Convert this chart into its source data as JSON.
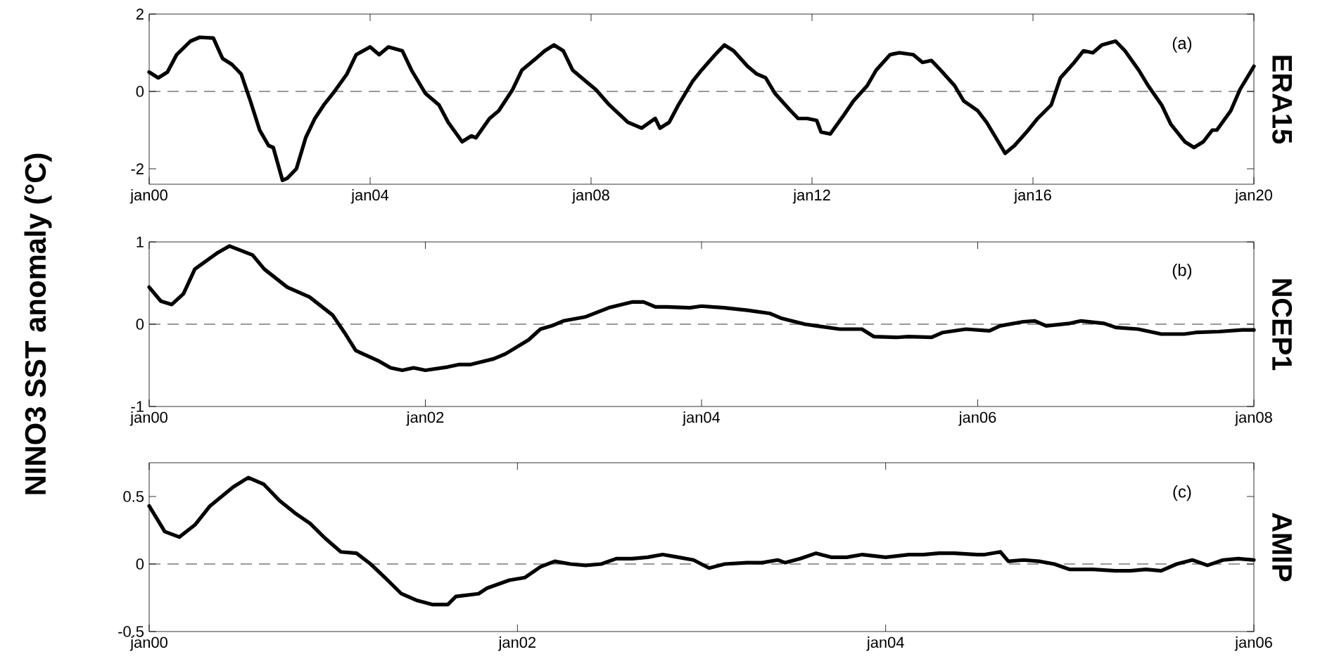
{
  "chart_data": [
    {
      "type": "line",
      "title": "ERA15",
      "annotations": [
        "(a)"
      ],
      "color": "#000000",
      "xlim": [
        "2000-01",
        "2020-01"
      ],
      "ylim": [
        -2.4,
        2
      ],
      "xticks": [
        {
          "value": "2000-01",
          "label": "jan00"
        },
        {
          "value": "2004-01",
          "label": "jan04"
        },
        {
          "value": "2008-01",
          "label": "jan08"
        },
        {
          "value": "2012-01",
          "label": "jan12"
        },
        {
          "value": "2016-01",
          "label": "jan16"
        },
        {
          "value": "2020-01",
          "label": "jan20"
        }
      ],
      "yticks": [
        -2,
        0,
        2
      ],
      "ref_lines": [
        {
          "axis": "y",
          "value": 0,
          "line_style": "dashed"
        }
      ],
      "x": [
        "2000-01",
        "2000-03",
        "2000-05",
        "2000-07",
        "2000-10",
        "2000-12",
        "2001-03",
        "2001-05",
        "2001-07",
        "2001-09",
        "2001-11",
        "2002-01",
        "2002-03",
        "2002-04",
        "2002-06",
        "2002-07",
        "2002-09",
        "2002-11",
        "2003-01",
        "2003-03",
        "2003-05",
        "2003-08",
        "2003-10",
        "2004-01",
        "2004-03",
        "2004-05",
        "2004-08",
        "2004-10",
        "2005-01",
        "2005-04",
        "2005-06",
        "2005-09",
        "2005-11",
        "2005-12",
        "2006-03",
        "2006-05",
        "2006-08",
        "2006-10",
        "2007-01",
        "2007-03",
        "2007-05",
        "2007-07",
        "2007-09",
        "2007-12",
        "2008-02",
        "2008-05",
        "2008-09",
        "2008-12",
        "2009-03",
        "2009-04",
        "2009-06",
        "2009-08",
        "2009-11",
        "2010-01",
        "2010-04",
        "2010-06",
        "2010-08",
        "2010-11",
        "2011-01",
        "2011-03",
        "2011-05",
        "2011-08",
        "2011-10",
        "2011-12",
        "2012-02",
        "2012-03",
        "2012-05",
        "2012-08",
        "2012-10",
        "2013-01",
        "2013-03",
        "2013-06",
        "2013-08",
        "2013-11",
        "2014-01",
        "2014-03",
        "2014-05",
        "2014-08",
        "2014-10",
        "2015-01",
        "2015-03",
        "2015-06",
        "2015-07",
        "2015-09",
        "2015-12",
        "2016-02",
        "2016-05",
        "2016-07",
        "2016-10",
        "2016-12",
        "2017-02",
        "2017-04",
        "2017-07",
        "2017-09",
        "2017-12",
        "2018-02",
        "2018-05",
        "2018-07",
        "2018-10",
        "2018-12",
        "2019-02",
        "2019-04",
        "2019-05",
        "2019-08",
        "2019-10",
        "2020-01"
      ],
      "values": [
        0.5,
        0.35,
        0.5,
        0.95,
        1.3,
        1.4,
        1.38,
        0.85,
        0.7,
        0.45,
        -0.25,
        -1.0,
        -1.4,
        -1.45,
        -2.3,
        -2.25,
        -2.0,
        -1.2,
        -0.7,
        -0.35,
        -0.05,
        0.45,
        0.95,
        1.15,
        0.95,
        1.15,
        1.05,
        0.55,
        -0.05,
        -0.35,
        -0.8,
        -1.3,
        -1.15,
        -1.2,
        -0.7,
        -0.5,
        0.05,
        0.55,
        0.85,
        1.05,
        1.2,
        1.05,
        0.55,
        0.25,
        0.05,
        -0.35,
        -0.8,
        -0.95,
        -0.7,
        -0.95,
        -0.8,
        -0.35,
        0.25,
        0.55,
        0.95,
        1.2,
        1.05,
        0.65,
        0.45,
        0.35,
        -0.05,
        -0.45,
        -0.7,
        -0.7,
        -0.75,
        -1.05,
        -1.1,
        -0.6,
        -0.25,
        0.15,
        0.55,
        0.95,
        1.0,
        0.95,
        0.75,
        0.8,
        0.55,
        0.15,
        -0.25,
        -0.5,
        -0.8,
        -1.4,
        -1.6,
        -1.4,
        -1.0,
        -0.7,
        -0.35,
        0.35,
        0.75,
        1.05,
        1.0,
        1.2,
        1.3,
        1.05,
        0.55,
        0.15,
        -0.35,
        -0.85,
        -1.3,
        -1.45,
        -1.3,
        -1.0,
        -1.0,
        -0.5,
        0.05,
        0.65
      ]
    },
    {
      "type": "line",
      "title": "NCEP1",
      "ylabel": "NINO3 SST anomaly (°C)",
      "annotations": [
        "(b)"
      ],
      "color": "#000000",
      "xlim": [
        "2000-01",
        "2008-01"
      ],
      "ylim": [
        -1,
        1
      ],
      "xticks": [
        {
          "value": "2000-01",
          "label": "jan00"
        },
        {
          "value": "2002-01",
          "label": "jan02"
        },
        {
          "value": "2004-01",
          "label": "jan04"
        },
        {
          "value": "2006-01",
          "label": "jan06"
        },
        {
          "value": "2008-01",
          "label": "jan08"
        }
      ],
      "yticks": [
        -1,
        0,
        1
      ],
      "ref_lines": [
        {
          "axis": "y",
          "value": 0,
          "line_style": "dashed"
        }
      ],
      "x": [
        "2000-01",
        "2000-02",
        "2000-03",
        "2000-04",
        "2000-05",
        "2000-07",
        "2000-08",
        "2000-10",
        "2000-11",
        "2001-01",
        "2001-03",
        "2001-05",
        "2001-06",
        "2001-07",
        "2001-09",
        "2001-10",
        "2001-11",
        "2001-12",
        "2002-01",
        "2002-03",
        "2002-04",
        "2002-05",
        "2002-07",
        "2002-08",
        "2002-10",
        "2002-11",
        "2002-12",
        "2003-01",
        "2003-03",
        "2003-05",
        "2003-07",
        "2003-08",
        "2003-09",
        "2003-10",
        "2003-12",
        "2004-01",
        "2004-03",
        "2004-05",
        "2004-07",
        "2004-08",
        "2004-10",
        "2004-11",
        "2005-01",
        "2005-03",
        "2005-04",
        "2005-06",
        "2005-07",
        "2005-09",
        "2005-10",
        "2005-12",
        "2006-02",
        "2006-03",
        "2006-05",
        "2006-06",
        "2006-07",
        "2006-09",
        "2006-10",
        "2006-12",
        "2007-01",
        "2007-03",
        "2007-05",
        "2007-07",
        "2007-08",
        "2007-10",
        "2007-12",
        "2008-01"
      ],
      "values": [
        0.45,
        0.28,
        0.24,
        0.37,
        0.67,
        0.87,
        0.95,
        0.84,
        0.67,
        0.45,
        0.33,
        0.11,
        -0.1,
        -0.32,
        -0.45,
        -0.53,
        -0.56,
        -0.53,
        -0.56,
        -0.52,
        -0.49,
        -0.49,
        -0.42,
        -0.36,
        -0.19,
        -0.06,
        -0.02,
        0.04,
        0.09,
        0.2,
        0.27,
        0.27,
        0.21,
        0.21,
        0.2,
        0.22,
        0.2,
        0.17,
        0.13,
        0.07,
        0.0,
        -0.02,
        -0.06,
        -0.06,
        -0.15,
        -0.16,
        -0.15,
        -0.16,
        -0.1,
        -0.06,
        -0.08,
        -0.02,
        0.03,
        0.04,
        -0.02,
        0.01,
        0.04,
        0.01,
        -0.04,
        -0.06,
        -0.12,
        -0.12,
        -0.1,
        -0.09,
        -0.07,
        -0.07
      ]
    },
    {
      "type": "line",
      "title": "AMIP",
      "annotations": [
        "(c)"
      ],
      "color": "#000000",
      "xlim": [
        "2000-01",
        "2006-01"
      ],
      "ylim": [
        -0.5,
        0.75
      ],
      "xticks": [
        {
          "value": "2000-01",
          "label": "jan00"
        },
        {
          "value": "2002-01",
          "label": "jan02"
        },
        {
          "value": "2004-01",
          "label": "jan04"
        },
        {
          "value": "2006-01",
          "label": "jan06"
        }
      ],
      "yticks": [
        -0.5,
        0,
        0.5
      ],
      "ref_lines": [
        {
          "axis": "y",
          "value": 0,
          "line_style": "dashed"
        }
      ],
      "x": [
        "2000-01-01",
        "2000-02-01",
        "2000-03-01",
        "2000-04-01",
        "2000-05-01",
        "2000-06-16",
        "2000-07-16",
        "2000-08-16",
        "2000-09-16",
        "2000-10-16",
        "2000-11-16",
        "2000-12-16",
        "2001-01-16",
        "2001-02-16",
        "2001-03-16",
        "2001-04-16",
        "2001-05-16",
        "2001-06-16",
        "2001-07-16",
        "2001-08-16",
        "2001-09-01",
        "2001-10-16",
        "2001-11-01",
        "2001-12-16",
        "2002-01-16",
        "2002-02-16",
        "2002-03-16",
        "2002-04-16",
        "2002-05-16",
        "2002-06-16",
        "2002-07-16",
        "2002-08-16",
        "2002-09-16",
        "2002-10-16",
        "2002-11-16",
        "2002-12-16",
        "2003-01-16",
        "2003-02-16",
        "2003-04-01",
        "2003-05-01",
        "2003-06-01",
        "2003-06-16",
        "2003-07-16",
        "2003-08-16",
        "2003-09-16",
        "2003-10-16",
        "2003-11-16",
        "2004-01-01",
        "2004-02-16",
        "2004-03-16",
        "2004-04-16",
        "2004-05-16",
        "2004-07-01",
        "2004-07-16",
        "2004-08-16",
        "2004-09-01",
        "2004-10-01",
        "2004-11-01",
        "2004-12-01",
        "2005-01-01",
        "2005-02-16",
        "2005-04-01",
        "2005-05-01",
        "2005-06-01",
        "2005-07-01",
        "2005-08-01",
        "2005-09-01",
        "2005-10-01",
        "2005-11-01",
        "2005-12-01",
        "2006-01-01"
      ],
      "values": [
        0.43,
        0.24,
        0.2,
        0.29,
        0.43,
        0.57,
        0.64,
        0.59,
        0.47,
        0.38,
        0.3,
        0.19,
        0.09,
        0.08,
        0.0,
        -0.11,
        -0.22,
        -0.27,
        -0.3,
        -0.3,
        -0.24,
        -0.22,
        -0.18,
        -0.12,
        -0.1,
        -0.02,
        0.02,
        0.0,
        -0.01,
        0.0,
        0.04,
        0.04,
        0.05,
        0.07,
        0.05,
        0.03,
        -0.03,
        0.0,
        0.01,
        0.01,
        0.03,
        0.01,
        0.04,
        0.08,
        0.05,
        0.05,
        0.07,
        0.05,
        0.07,
        0.07,
        0.08,
        0.08,
        0.07,
        0.07,
        0.09,
        0.02,
        0.03,
        0.02,
        0.0,
        -0.04,
        -0.04,
        -0.05,
        -0.05,
        -0.04,
        -0.05,
        0.0,
        0.03,
        -0.01,
        0.03,
        0.04,
        0.03
      ]
    }
  ]
}
